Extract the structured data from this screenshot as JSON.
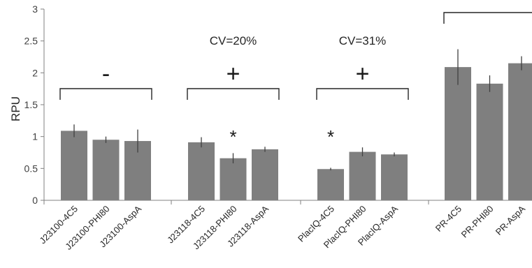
{
  "chart_data": {
    "type": "bar",
    "ylabel": "RPU",
    "ylim": [
      0,
      3
    ],
    "yticks": [
      "0",
      "0.5",
      "1",
      "1.5",
      "2",
      "2.5",
      "3"
    ],
    "grid": false,
    "legend": "none",
    "bar_color": "#7f7f7f",
    "error_color": "#404040",
    "groups": [
      {
        "sign": "-",
        "cv": "",
        "bars": [
          {
            "label": "J23100-4C5",
            "value": 1.09,
            "error": 0.1,
            "star": ""
          },
          {
            "label": "J23100-PHI80",
            "value": 0.95,
            "error": 0.05,
            "star": ""
          },
          {
            "label": "J23100-AspA",
            "value": 0.93,
            "error": 0.18,
            "star": ""
          }
        ]
      },
      {
        "sign": "+",
        "cv": "CV=20%",
        "bars": [
          {
            "label": "J23118-4C5",
            "value": 0.91,
            "error": 0.08,
            "star": ""
          },
          {
            "label": "J23118-PHI80",
            "value": 0.66,
            "error": 0.08,
            "star": "*"
          },
          {
            "label": "J23118-AspA",
            "value": 0.8,
            "error": 0.04,
            "star": ""
          }
        ]
      },
      {
        "sign": "+",
        "cv": "CV=31%",
        "bars": [
          {
            "label": "PlacIQ-4C5",
            "value": 0.49,
            "error": 0.02,
            "star": "*"
          },
          {
            "label": "PlacIQ-PHI80",
            "value": 0.76,
            "error": 0.07,
            "star": ""
          },
          {
            "label": "PlacIQ-AspA",
            "value": 0.72,
            "error": 0.03,
            "star": ""
          }
        ]
      },
      {
        "sign": "",
        "cv": "",
        "bars": [
          {
            "label": "PR-4C5",
            "value": 2.09,
            "error": 0.28,
            "star": ""
          },
          {
            "label": "PR-PHI80",
            "value": 1.83,
            "error": 0.13,
            "star": ""
          },
          {
            "label": "PR-AspA",
            "value": 2.15,
            "error": 0.11,
            "star": ""
          }
        ]
      }
    ]
  }
}
